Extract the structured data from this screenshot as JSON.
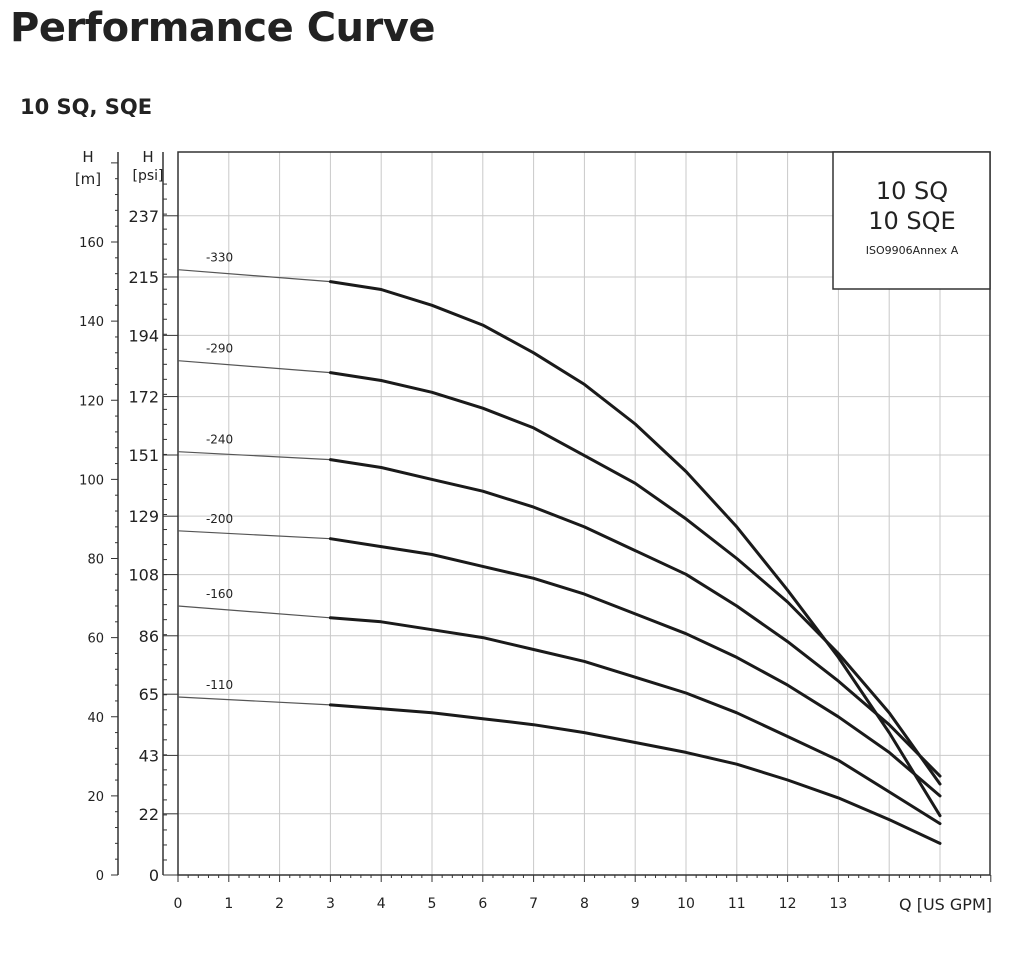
{
  "page": {
    "title": "Performance Curve"
  },
  "chart_data": {
    "type": "line",
    "title": "10 SQ, SQE",
    "legend_box": [
      "10 SQ",
      "10 SQE",
      "ISO9906Annex A"
    ],
    "legend_placement": "top-right",
    "xlabel": "Q [US GPM]",
    "ylabel_left": "H",
    "ylabel_left_unit": "[m]",
    "ylabel_right": "H",
    "ylabel_right_unit": "[psi]",
    "xlim": [
      0,
      16
    ],
    "ylim_m": [
      0,
      182
    ],
    "x_ticks": [
      "0",
      "1",
      "2",
      "3",
      "4",
      "5",
      "6",
      "7",
      "8",
      "9",
      "10",
      "11",
      "12",
      "13"
    ],
    "y_ticks_m": [
      "0",
      "20",
      "40",
      "60",
      "80",
      "100",
      "120",
      "140",
      "160"
    ],
    "y_ticks_psi": [
      "0",
      "22",
      "43",
      "65",
      "86",
      "108",
      "129",
      "151",
      "172",
      "194",
      "215",
      "237"
    ],
    "grid": true,
    "series": [
      {
        "name": "-330",
        "x": [
          0,
          3,
          4,
          5,
          6,
          7,
          8,
          9,
          10,
          11,
          12,
          13,
          14,
          15
        ],
        "y": [
          153,
          150,
          148,
          144,
          139,
          132,
          124,
          114,
          102,
          88,
          72,
          55,
          36,
          15
        ]
      },
      {
        "name": "-290",
        "x": [
          0,
          3,
          4,
          5,
          6,
          7,
          8,
          9,
          10,
          11,
          12,
          13,
          14,
          15
        ],
        "y": [
          130,
          127,
          125,
          122,
          118,
          113,
          106,
          99,
          90,
          80,
          69,
          56,
          41,
          23
        ]
      },
      {
        "name": "-240",
        "x": [
          0,
          3,
          4,
          5,
          6,
          7,
          8,
          9,
          10,
          11,
          12,
          13,
          14,
          15
        ],
        "y": [
          107,
          105,
          103,
          100,
          97,
          93,
          88,
          82,
          76,
          68,
          59,
          49,
          38,
          25
        ]
      },
      {
        "name": "-200",
        "x": [
          0,
          3,
          4,
          5,
          6,
          7,
          8,
          9,
          10,
          11,
          12,
          13,
          14,
          15
        ],
        "y": [
          87,
          85,
          83,
          81,
          78,
          75,
          71,
          66,
          61,
          55,
          48,
          40,
          31,
          20
        ]
      },
      {
        "name": "-160",
        "x": [
          0,
          3,
          4,
          5,
          6,
          7,
          8,
          9,
          10,
          11,
          12,
          13,
          14,
          15
        ],
        "y": [
          68,
          65,
          64,
          62,
          60,
          57,
          54,
          50,
          46,
          41,
          35,
          29,
          21,
          13
        ]
      },
      {
        "name": "-110",
        "x": [
          0,
          3,
          4,
          5,
          6,
          7,
          8,
          9,
          10,
          11,
          12,
          13,
          14,
          15
        ],
        "y": [
          45,
          43,
          42,
          41,
          39.5,
          38,
          36,
          33.5,
          31,
          28,
          24,
          19.5,
          14,
          8
        ]
      }
    ]
  }
}
